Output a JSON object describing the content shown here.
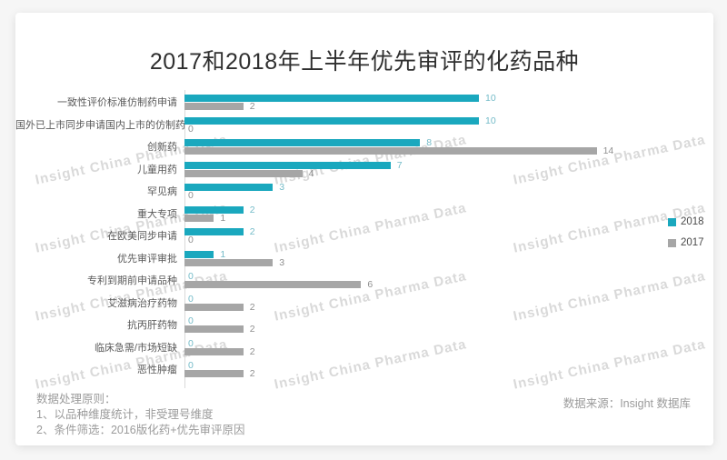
{
  "title": "2017和2018年上半年优先审评的化药品种",
  "watermark": {
    "text": "Insight China Pharma Data"
  },
  "legend": [
    {
      "label": "2018",
      "color": "#1AA8BE"
    },
    {
      "label": "2017",
      "color": "#A6A6A6"
    }
  ],
  "footnotes": {
    "heading": "数据处理原则：",
    "lines": [
      "1、以品种维度统计，非受理号维度",
      "2、条件筛选：2016版化药+优先审评原因"
    ]
  },
  "source": "数据来源：Insight 数据库",
  "chart_data": {
    "type": "bar",
    "orientation": "horizontal",
    "title": "2017和2018年上半年优先审评的化药品种",
    "categories": [
      "一致性评价标准仿制药申请",
      "国外已上市同步申请国内上市的仿制药",
      "创新药",
      "儿童用药",
      "罕见病",
      "重大专项",
      "在欧美同步申请",
      "优先审评审批",
      "专利到期前申请品种",
      "艾滋病治疗药物",
      "抗丙肝药物",
      "临床急需/市场短缺",
      "恶性肿瘤"
    ],
    "series": [
      {
        "name": "2018",
        "color": "#1AA8BE",
        "label_color": "#74BBC8",
        "values": [
          10,
          10,
          8,
          7,
          3,
          2,
          2,
          1,
          0,
          0,
          0,
          0,
          0
        ]
      },
      {
        "name": "2017",
        "color": "#A6A6A6",
        "label_color": "#8F8F8F",
        "values": [
          2,
          0,
          14,
          4,
          0,
          1,
          0,
          3,
          6,
          2,
          2,
          2,
          2
        ]
      }
    ],
    "xlim": [
      0,
      14
    ],
    "value_labels": true,
    "legend_position": "right",
    "grid": false
  }
}
